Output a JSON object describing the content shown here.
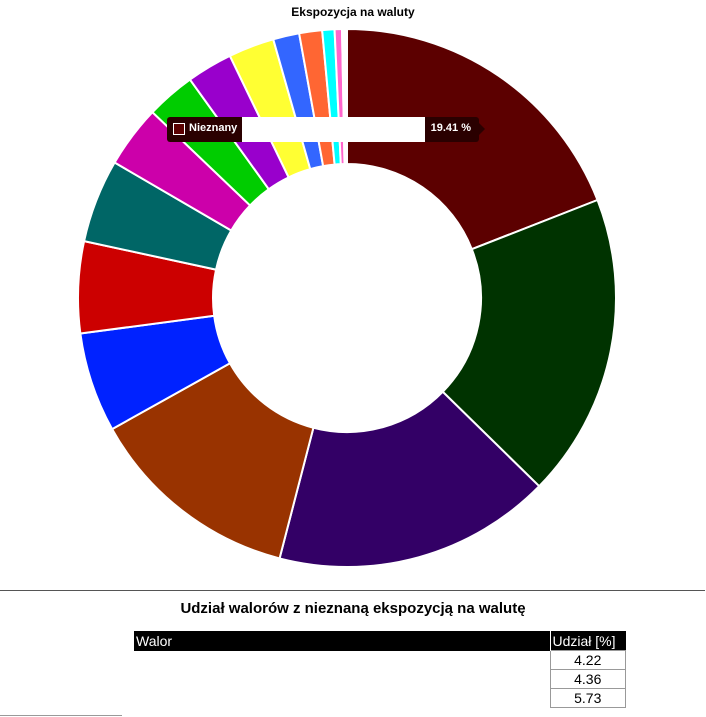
{
  "chart_data": {
    "type": "pie",
    "title": "Ekspozycja na waluty",
    "donut": true,
    "categories": [
      "Nieznany",
      "",
      "",
      "",
      "",
      "",
      "",
      "",
      "",
      "",
      "",
      "",
      "",
      "",
      "",
      ""
    ],
    "values": [
      19.41,
      18.6,
      17.0,
      13.1,
      6.1,
      5.6,
      5.1,
      3.8,
      3.0,
      2.8,
      2.8,
      1.6,
      1.4,
      0.75,
      0.45,
      0.3
    ],
    "colors": [
      "#5c0000",
      "#003300",
      "#330066",
      "#993300",
      "#0022ff",
      "#cc0000",
      "#006666",
      "#cc00aa",
      "#00cc00",
      "#9900cc",
      "#ffff33",
      "#3366ff",
      "#ff6633",
      "#00ffff",
      "#ff66cc",
      "#ffffff"
    ],
    "tooltip": {
      "label": "Nieznany",
      "value": "19.41 %"
    },
    "legend": "none"
  },
  "table": {
    "title": "Udział walorów z nieznaną ekspozycją na walutę",
    "headers": [
      "Walor",
      "Udział [%]"
    ],
    "rows": [
      {
        "walor": "",
        "share": "4.22"
      },
      {
        "walor": "",
        "share": "4.36"
      },
      {
        "walor": "",
        "share": "5.73"
      }
    ]
  }
}
